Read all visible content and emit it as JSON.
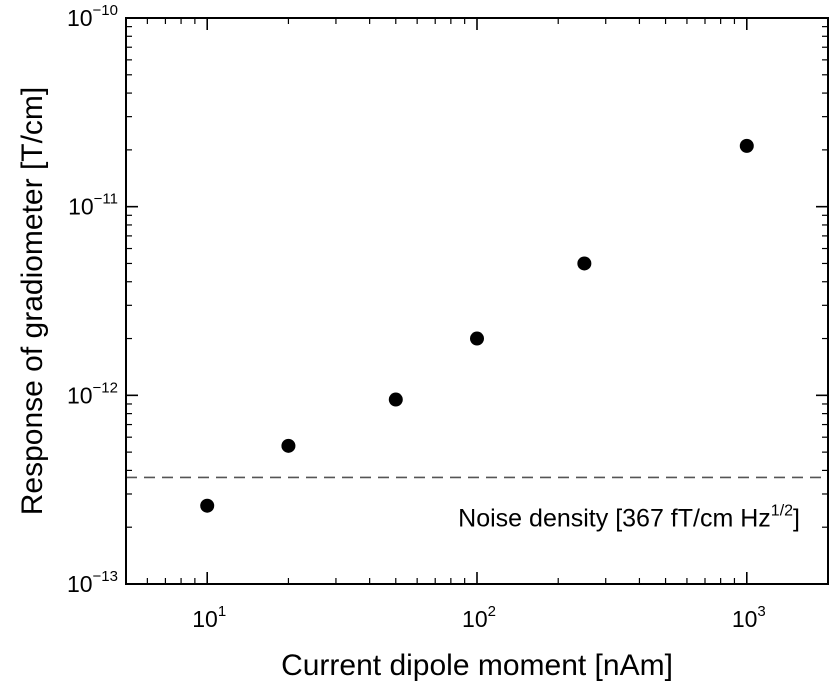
{
  "chart_data": {
    "type": "scatter",
    "xlabel": "Current dipole moment [nAm]",
    "ylabel": "Response of gradiometer [T/cm]",
    "x_scale": "log",
    "y_scale": "log",
    "xlim": [
      5,
      2000
    ],
    "ylim": [
      1e-13,
      1e-10
    ],
    "grid": false,
    "x_ticks": [
      {
        "value": 10,
        "base": "10",
        "exp": "1"
      },
      {
        "value": 100,
        "base": "10",
        "exp": "2"
      },
      {
        "value": 1000,
        "base": "10",
        "exp": "3"
      }
    ],
    "y_ticks": [
      {
        "value": 1e-13,
        "base": "10",
        "exp": "−13"
      },
      {
        "value": 1e-12,
        "base": "10",
        "exp": "−12"
      },
      {
        "value": 1e-11,
        "base": "10",
        "exp": "−11"
      },
      {
        "value": 1e-10,
        "base": "10",
        "exp": "−10"
      }
    ],
    "series": [
      {
        "points": [
          {
            "x": 10,
            "y": 2.6e-13
          },
          {
            "x": 20,
            "y": 5.4e-13
          },
          {
            "x": 50,
            "y": 9.5e-13
          },
          {
            "x": 100,
            "y": 2e-12
          },
          {
            "x": 250,
            "y": 5e-12
          },
          {
            "x": 1000,
            "y": 2.1e-11
          }
        ],
        "color": "#000000"
      }
    ],
    "reference_line": {
      "y": 3.67e-13,
      "style": "dashed",
      "color": "#555555",
      "label_main": "Noise density [367 fT/cm Hz",
      "label_sup": "1/2",
      "label_end": "]"
    }
  }
}
